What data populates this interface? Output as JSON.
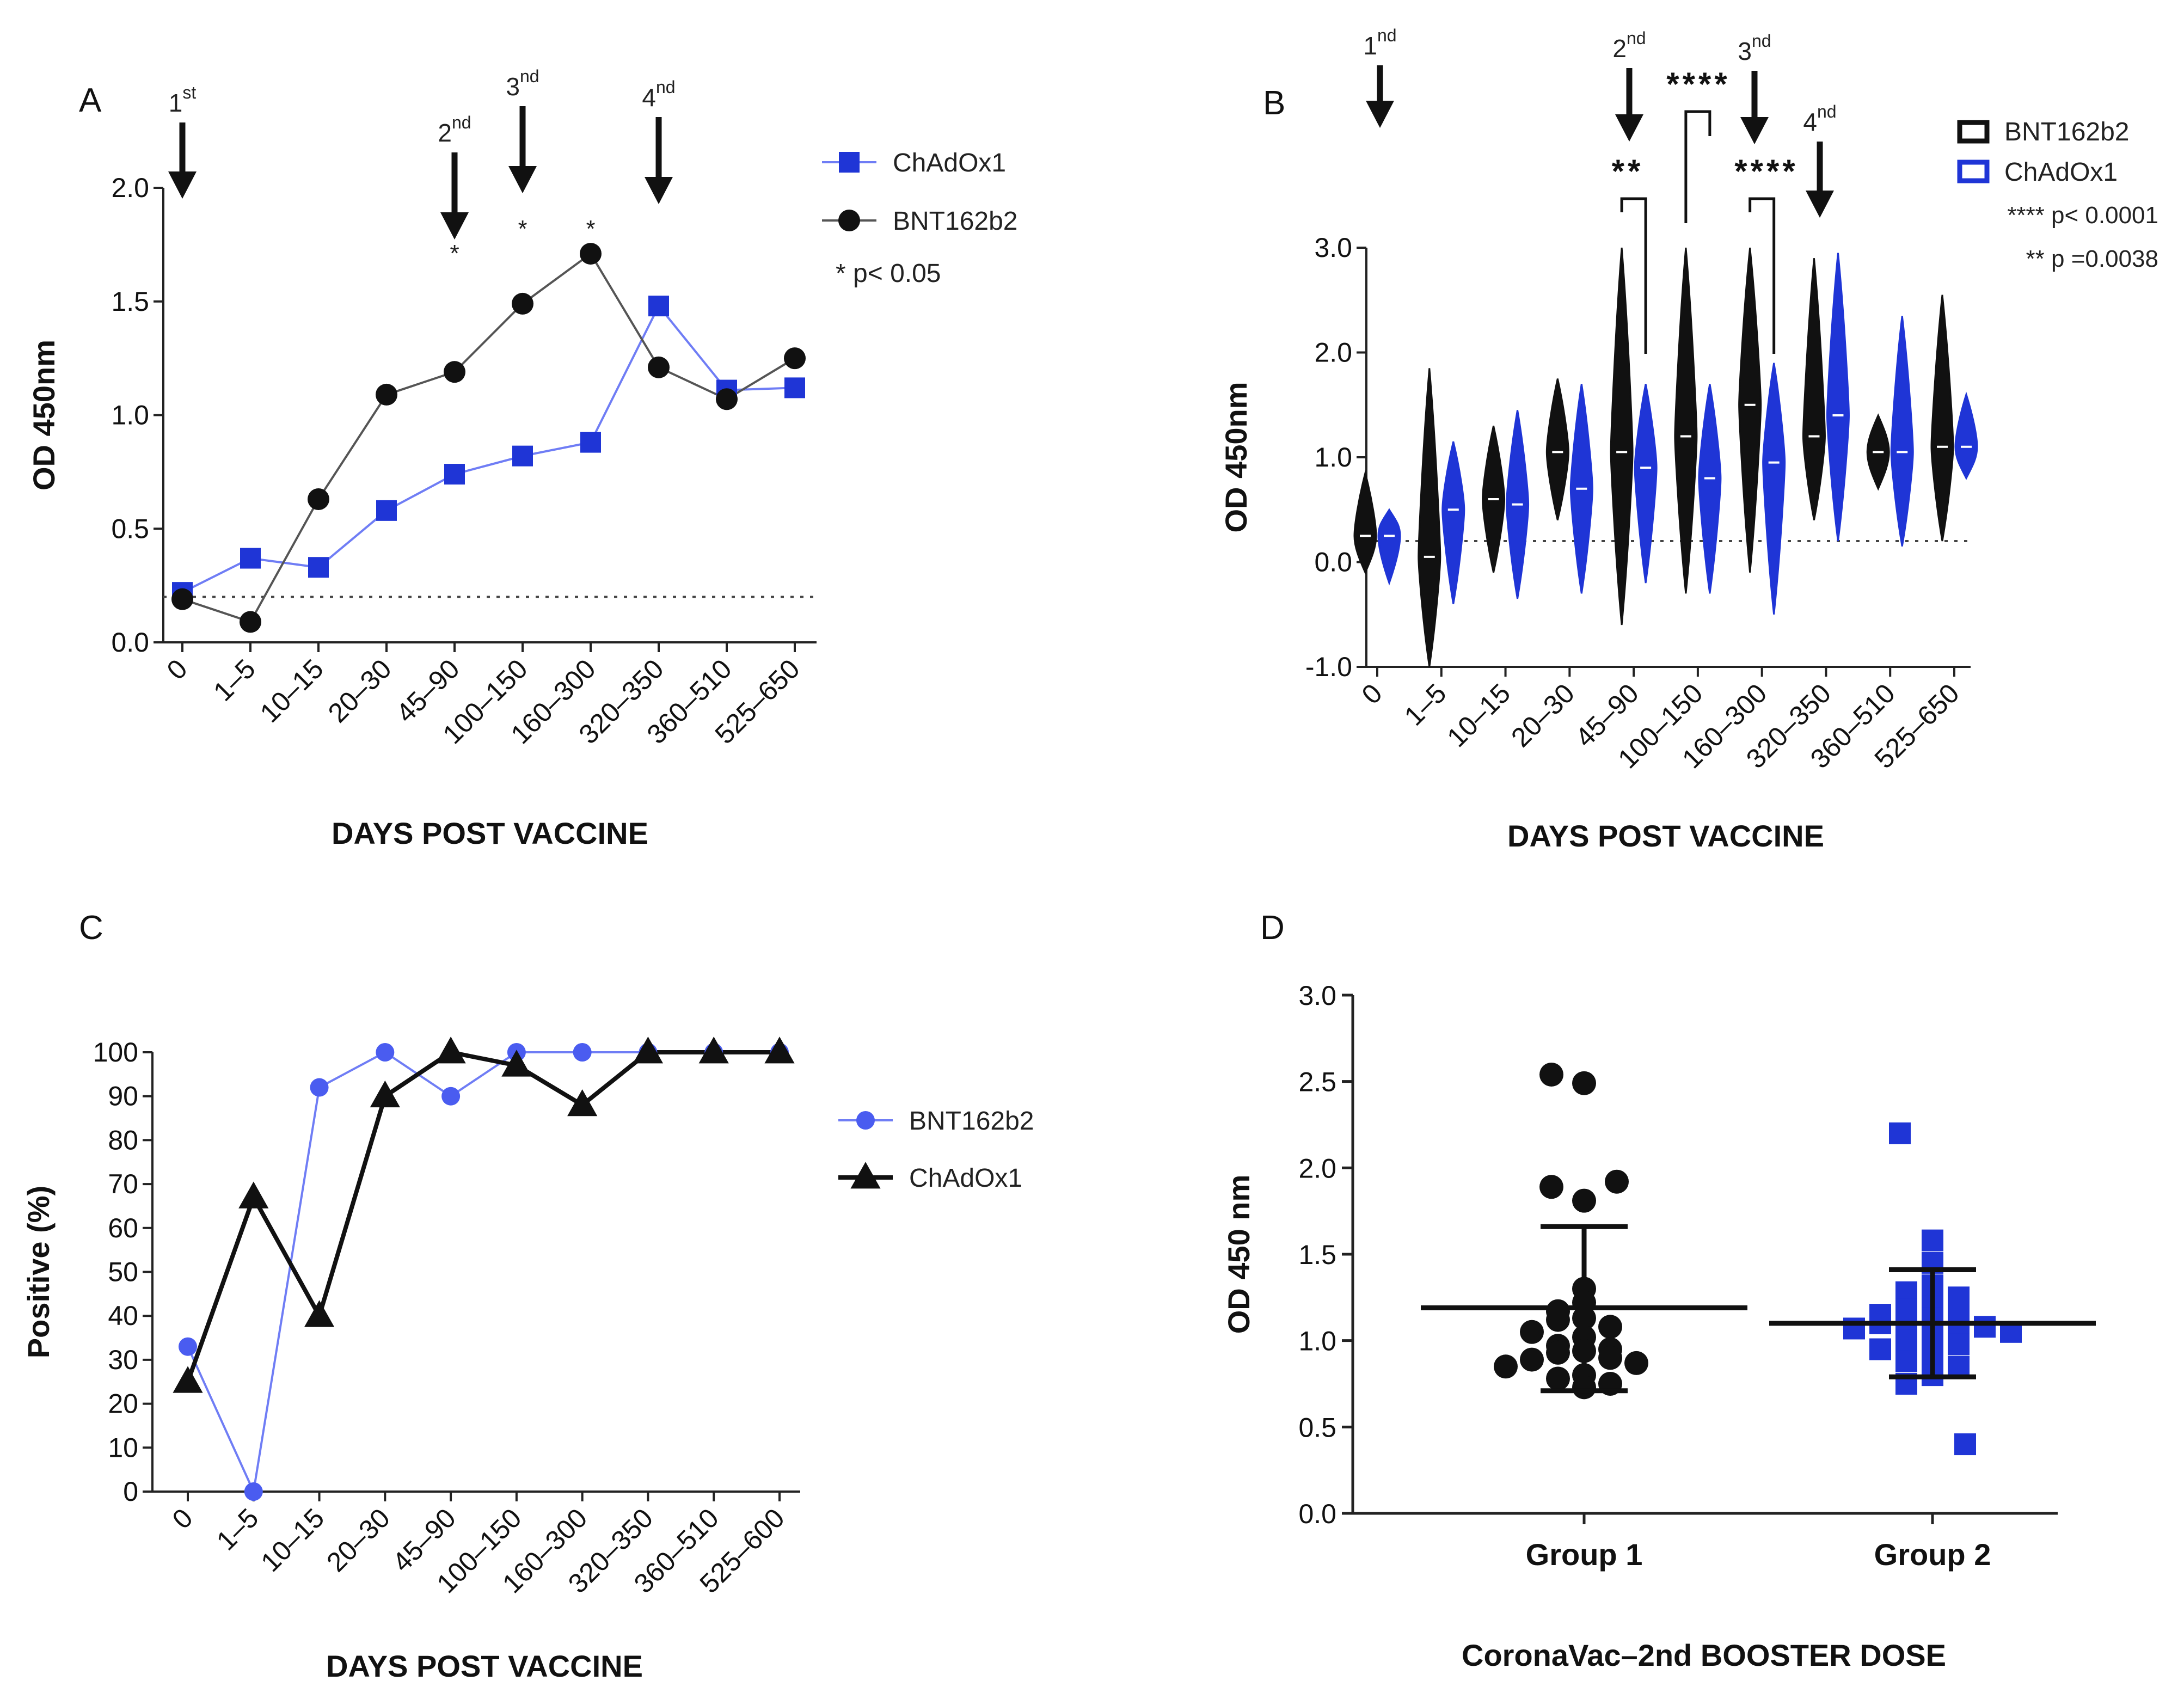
{
  "figure": {
    "background": "#ffffff",
    "colors": {
      "blue": "#1f35d6",
      "light_blue": "#6f7df5",
      "black": "#111111",
      "line_gray": "#555555"
    }
  },
  "chart_data": [
    {
      "panel": "A",
      "type": "line",
      "ylabel": "OD 450nm",
      "xlabel": "DAYS POST VACCINE",
      "ylim": [
        0,
        2.0
      ],
      "yticks": [
        "0.0",
        "0.5",
        "1.0",
        "1.5",
        "2.0"
      ],
      "categories": [
        "0",
        "1–5",
        "10–15",
        "20–30",
        "45–90",
        "100–150",
        "160–300",
        "320–350",
        "360–510",
        "525–650"
      ],
      "cutoff": 0.2,
      "series": [
        {
          "name": "ChAdOx1",
          "marker": "square",
          "values": [
            0.22,
            0.37,
            0.33,
            0.58,
            0.74,
            0.82,
            0.88,
            1.48,
            1.11,
            1.12
          ]
        },
        {
          "name": "BNT162b2",
          "marker": "circle",
          "values": [
            0.19,
            0.09,
            0.63,
            1.09,
            1.19,
            1.49,
            1.71,
            1.21,
            1.07,
            1.25
          ]
        }
      ],
      "significance": [
        {
          "category": "45–90",
          "label": "*"
        },
        {
          "category": "100–150",
          "label": "*"
        },
        {
          "category": "160–300",
          "label": "*"
        }
      ],
      "legend_note": "* p< 0.05",
      "dose_arrows": [
        {
          "num": "1",
          "sup": "st",
          "category": "0"
        },
        {
          "num": "2",
          "sup": "nd",
          "category": "45–90"
        },
        {
          "num": "3",
          "sup": "nd",
          "category": "100–150"
        },
        {
          "num": "4",
          "sup": "nd",
          "category": "320–350"
        }
      ]
    },
    {
      "panel": "B",
      "type": "violin",
      "ylabel": "OD 450nm",
      "xlabel": "DAYS POST VACCINE",
      "ylim": [
        -1.0,
        3.0
      ],
      "yticks": [
        "-1.0",
        "0.0",
        "1.0",
        "2.0",
        "3.0"
      ],
      "categories": [
        "0",
        "1–5",
        "10–15",
        "20–30",
        "45–90",
        "100–150",
        "160–300",
        "320–350",
        "360–510",
        "525–650"
      ],
      "cutoff": 0.2,
      "series": [
        {
          "name": "BNT162b2",
          "min": [
            -0.1,
            -1.0,
            -0.1,
            0.4,
            -0.6,
            -0.3,
            -0.1,
            0.4,
            0.7,
            0.2
          ],
          "median": [
            0.25,
            0.05,
            0.6,
            1.05,
            1.05,
            1.2,
            1.5,
            1.2,
            1.05,
            1.1
          ],
          "max": [
            0.85,
            1.85,
            1.3,
            1.75,
            3.0,
            3.0,
            3.0,
            2.9,
            1.4,
            2.55
          ]
        },
        {
          "name": "ChAdOx1",
          "min": [
            -0.2,
            -0.4,
            -0.35,
            -0.3,
            -0.2,
            -0.3,
            -0.5,
            0.2,
            0.15,
            0.8
          ],
          "median": [
            0.25,
            0.5,
            0.55,
            0.7,
            0.9,
            0.8,
            0.95,
            1.4,
            1.05,
            1.1
          ],
          "max": [
            0.5,
            1.15,
            1.45,
            1.7,
            1.7,
            1.7,
            1.9,
            2.95,
            2.35,
            1.6
          ]
        }
      ],
      "significance": [
        {
          "label": "**",
          "categories": [
            "45–90",
            "45–90"
          ]
        },
        {
          "label": "****",
          "categories": [
            "100–150",
            "100–150"
          ]
        },
        {
          "label": "****",
          "categories": [
            "160–300",
            "160–300"
          ]
        }
      ],
      "legend_notes": [
        "**** p< 0.0001",
        "** p =0.0038"
      ],
      "dose_arrows": [
        {
          "num": "1",
          "sup": "nd",
          "category": "0"
        },
        {
          "num": "2",
          "sup": "nd",
          "category": "45–90"
        },
        {
          "num": "3",
          "sup": "nd",
          "category": "160–300"
        },
        {
          "num": "4",
          "sup": "nd",
          "category": "320–350"
        }
      ]
    },
    {
      "panel": "C",
      "type": "line",
      "ylabel": "Positive (%)",
      "xlabel": "DAYS POST VACCINE",
      "ylim": [
        0,
        100
      ],
      "yticks": [
        "0",
        "10",
        "20",
        "30",
        "40",
        "50",
        "60",
        "70",
        "80",
        "90",
        "100"
      ],
      "categories": [
        "0",
        "1–5",
        "10–15",
        "20–30",
        "45–90",
        "100–150",
        "160–300",
        "320–350",
        "360–510",
        "525–600"
      ],
      "series": [
        {
          "name": "BNT162b2",
          "marker": "circle",
          "values": [
            33,
            0,
            92,
            100,
            90,
            100,
            100,
            100,
            100,
            100
          ]
        },
        {
          "name": "ChAdOx1",
          "marker": "triangle",
          "values": [
            25,
            67,
            40,
            90,
            100,
            97,
            88,
            100,
            100,
            100
          ]
        }
      ]
    },
    {
      "panel": "D",
      "type": "scatter",
      "ylabel": "OD 450 nm",
      "xlabel": "CoronaVac–2nd BOOSTER DOSE",
      "ylim": [
        0,
        3.0
      ],
      "yticks": [
        "0.0",
        "0.5",
        "1.0",
        "1.5",
        "2.0",
        "2.5",
        "3.0"
      ],
      "categories": [
        "Group 1",
        "Group 2"
      ],
      "series": [
        {
          "name": "Group 1",
          "marker": "circle",
          "mean": 1.19,
          "sd_low": 0.71,
          "sd_high": 1.66,
          "values": [
            2.54,
            2.49,
            1.92,
            1.89,
            1.81,
            1.3,
            1.22,
            1.17,
            1.13,
            1.12,
            1.08,
            1.05,
            1.02,
            0.97,
            0.95,
            0.94,
            0.93,
            0.9,
            0.89,
            0.87,
            0.85,
            0.8,
            0.78,
            0.75,
            0.73
          ]
        },
        {
          "name": "Group 2",
          "marker": "square",
          "mean": 1.1,
          "sd_low": 0.79,
          "sd_high": 1.41,
          "values": [
            2.2,
            1.58,
            1.45,
            1.32,
            1.28,
            1.25,
            1.2,
            1.18,
            1.16,
            1.15,
            1.13,
            1.12,
            1.1,
            1.1,
            1.08,
            1.07,
            1.05,
            1.03,
            1.0,
            0.98,
            0.95,
            0.92,
            0.88,
            0.85,
            0.8,
            0.75,
            0.4
          ]
        }
      ]
    }
  ]
}
